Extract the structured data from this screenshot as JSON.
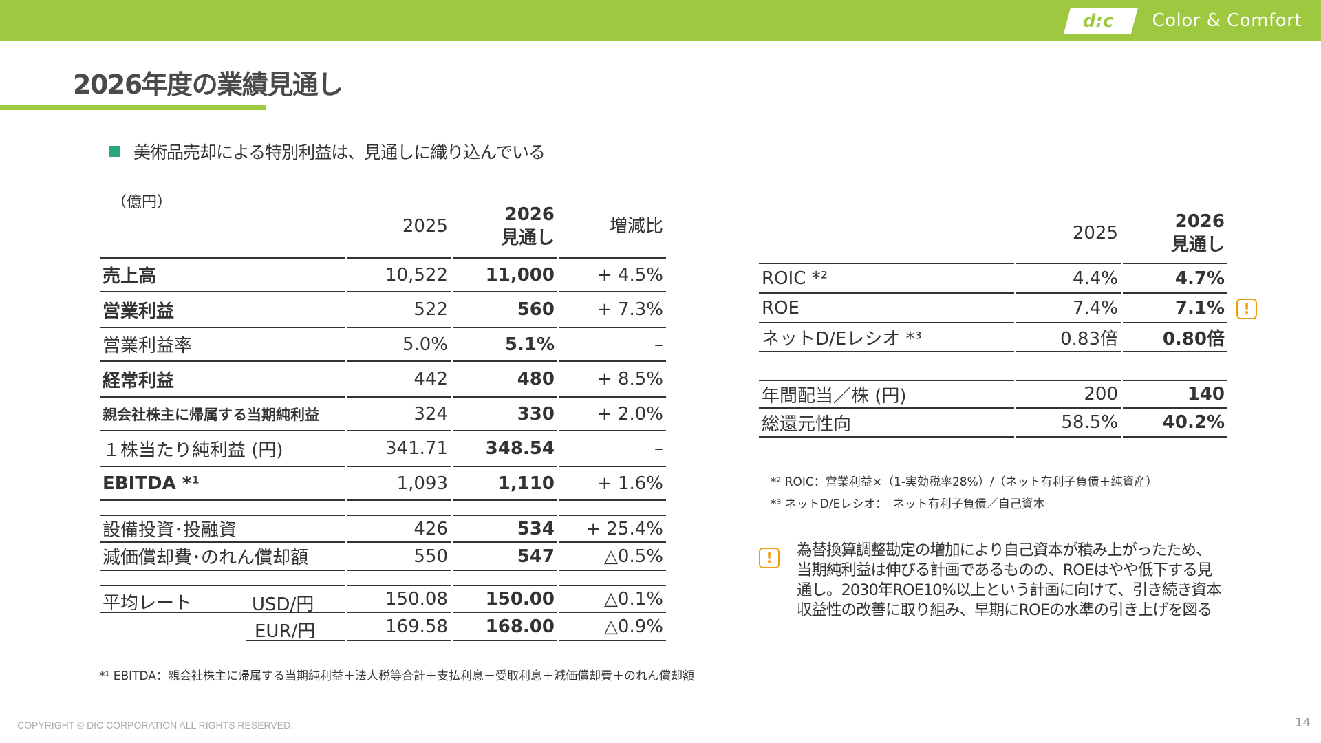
{
  "header": {
    "brand_text": "Color & Comfort",
    "bar_color": "#9dc83f"
  },
  "page": {
    "title": "2026年度の業績見通し",
    "bullet": "美術品売却による特別利益は、見通しに織り込んでいる",
    "unit": "（億円）"
  },
  "main_table": {
    "headers": {
      "y2025": "2025",
      "y2026": "2026",
      "y2026_sub": "見通し",
      "change": "増減比"
    },
    "rows": [
      {
        "label": "売上高",
        "v2025": "10,522",
        "v2026": "11,000",
        "change": "+ 4.5%"
      },
      {
        "label": "営業利益",
        "v2025": "522",
        "v2026": "560",
        "change": "+ 7.3%"
      },
      {
        "label": "営業利益率",
        "v2025": "5.0%",
        "v2026": "5.1%",
        "change": "–"
      },
      {
        "label": "経常利益",
        "v2025": "442",
        "v2026": "480",
        "change": "+ 8.5%"
      },
      {
        "label": "親会社株主に帰属する当期純利益",
        "v2025": "324",
        "v2026": "330",
        "change": "+ 2.0%"
      },
      {
        "label": "１株当たり純利益 (円)",
        "v2025": "341.71",
        "v2026": "348.54",
        "change": "–"
      },
      {
        "label": "EBITDA *¹",
        "v2025": "1,093",
        "v2026": "1,110",
        "change": "+ 1.6%"
      },
      {
        "label": "設備投資･投融資",
        "v2025": "426",
        "v2026": "534",
        "change": "+ 25.4%"
      },
      {
        "label": "減価償却費･のれん償却額",
        "v2025": "550",
        "v2026": "547",
        "change": "△0.5%"
      }
    ],
    "rate_label": "平均レート",
    "rates": [
      {
        "label": "USD/円",
        "v2025": "150.08",
        "v2026": "150.00",
        "change": "△0.1%"
      },
      {
        "label": "EUR/円",
        "v2025": "169.58",
        "v2026": "168.00",
        "change": "△0.9%"
      }
    ]
  },
  "footnote1": "*¹ EBITDA：親会社株主に帰属する当期純利益＋法人税等合計＋支払利息－受取利息＋減価償却費＋のれん償却額",
  "ratio_table": {
    "headers": {
      "y2025": "2025",
      "y2026": "2026",
      "y2026_sub": "見通し"
    },
    "rows": [
      {
        "label": "ROIC *²",
        "v2025": "4.4%",
        "v2026": "4.7%"
      },
      {
        "label": "ROE",
        "v2025": "7.4%",
        "v2026": "7.1%"
      },
      {
        "label": "ネットD/Eレシオ *³",
        "v2025": "0.83倍",
        "v2026": "0.80倍"
      },
      {
        "label": "年間配当／株 (円)",
        "v2025": "200",
        "v2026": "140"
      },
      {
        "label": "総還元性向",
        "v2025": "58.5%",
        "v2026": "40.2%"
      }
    ]
  },
  "notes": {
    "roic": "*² ROIC：営業利益×（1-実効税率28%）/（ネット有利子負債＋純資産）",
    "de": "*³ ネットD/Eレシオ：　ネット有利子負債／自己資本"
  },
  "warning": {
    "icon": "!",
    "text": "為替換算調整勘定の増加により自己資本が積み上がったため、当期純利益は伸びる計画であるものの、ROEはやや低下する見通し。2030年ROE10%以上という計画に向けて、引き続き資本収益性の改善に取り組み、早期にROEの水準の引き上げを図る"
  },
  "footer": {
    "copyright": "COPYRIGHT © DIC CORPORATION ALL RIGHTS RESERVED.",
    "page_number": "14"
  }
}
